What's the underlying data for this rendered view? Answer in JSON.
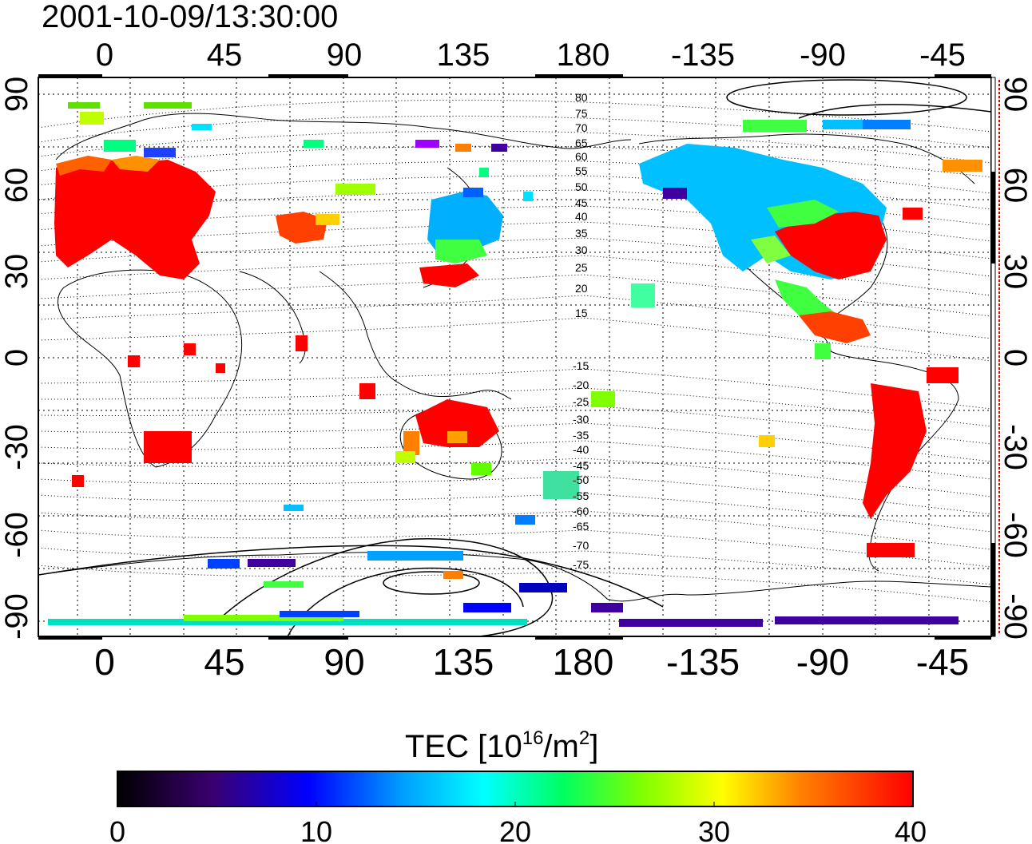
{
  "map": {
    "title": "2001-10-09/13:30:00",
    "lon_ticks": [
      "0",
      "45",
      "90",
      "135",
      "180",
      "-135",
      "-90",
      "-45"
    ],
    "lat_ticks": [
      "90",
      "60",
      "30",
      "0",
      "-30",
      "-60",
      "-90"
    ],
    "contour_labels_north": [
      "80",
      "75",
      "70",
      "65",
      "60",
      "55",
      "50",
      "45",
      "40",
      "35",
      "30",
      "25",
      "20",
      "15"
    ],
    "contour_labels_south": [
      "-15",
      "-20",
      "-25",
      "-30",
      "-35",
      "-40",
      "-45",
      "-50",
      "-55",
      "-60",
      "-65",
      "-70",
      "-75"
    ]
  },
  "colorbar": {
    "label_main": "TEC  [10",
    "label_sup1": "16",
    "label_mid": "/m",
    "label_sup2": "2",
    "label_end": "]",
    "tick_labels": [
      "0",
      "10",
      "20",
      "30",
      "40"
    ],
    "range": [
      0,
      40
    ],
    "colors": [
      "#000000",
      "#3a0070",
      "#0000ff",
      "#00a0ff",
      "#00ffff",
      "#00ff60",
      "#80ff00",
      "#ffff00",
      "#ff8000",
      "#ff0000"
    ]
  },
  "colors": {
    "low": "#3a00a0",
    "mid_low": "#00a0ff",
    "mid": "#00e060",
    "mid_high": "#ffff00",
    "high": "#ff0000"
  }
}
